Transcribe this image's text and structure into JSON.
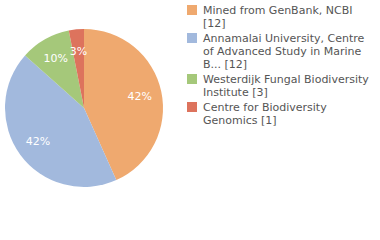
{
  "chart_data": {
    "type": "pie",
    "categories": [
      "Mined from GenBank, NCBI [12]",
      "Annamalai University, Centre of Advanced Study in Marine B... [12]",
      "Westerdijk Fungal Biodiversity Institute [3]",
      "Centre for Biodiversity Genomics [1]"
    ],
    "values": [
      42,
      42,
      10,
      3
    ],
    "value_labels": [
      "42%",
      "42%",
      "10%",
      "3%"
    ],
    "colors": [
      "#efa96f",
      "#a2b9dd",
      "#a5c87a",
      "#dd735d"
    ],
    "data_labels": true,
    "legend": "top-right"
  }
}
